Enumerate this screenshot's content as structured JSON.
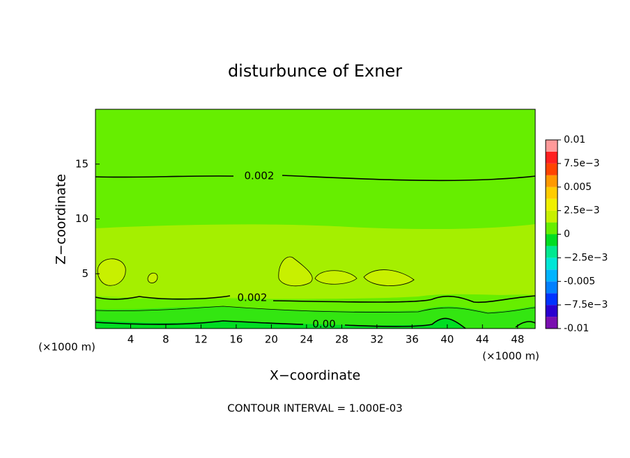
{
  "chart_data": {
    "type": "contour",
    "title": "disturbunce of Exner",
    "x_label": "X−coordinate",
    "y_label": "Z−coordinate",
    "x_unit": "(×1000 m)",
    "y_unit": "(×1000 m)",
    "annotation": "CONTOUR INTERVAL = 1.000E-03",
    "xlim": [
      0,
      50
    ],
    "xticks": [
      4,
      8,
      12,
      16,
      20,
      24,
      28,
      32,
      36,
      40,
      44,
      48
    ],
    "ylim": [
      0,
      20
    ],
    "yticks": [
      5,
      10,
      15
    ],
    "contour_labels": [
      0.002,
      0.002,
      {
        "value": 0,
        "label": "0.00"
      }
    ],
    "colorbar": {
      "levels": [
        -0.01,
        -0.00875,
        -0.0075,
        -0.00625,
        -0.005,
        -0.00375,
        -0.0025,
        -0.00125,
        0,
        0.00125,
        0.0025,
        0.00375,
        0.005,
        0.00625,
        0.0075,
        0.00875,
        0.01
      ],
      "colors": [
        "#7a10b0",
        "#2a00d0",
        "#0033ff",
        "#0080ff",
        "#00b4ff",
        "#00e6d6",
        "#00e890",
        "#00dd22",
        "#66ee00",
        "#c8f000",
        "#f0f000",
        "#ffcc00",
        "#ff9900",
        "#ff4400",
        "#ff2020",
        "#ff9a9a"
      ],
      "ticks": [
        -0.01,
        {
          "value": -0.0075,
          "label": "−7.5e−3"
        },
        -0.005,
        {
          "value": -0.0025,
          "label": "−2.5e−3"
        },
        0,
        {
          "value": 0.0025,
          "label": "2.5e−3"
        },
        0.005,
        {
          "value": 0.0075,
          "label": "7.5e−3"
        },
        0.01
      ]
    }
  }
}
